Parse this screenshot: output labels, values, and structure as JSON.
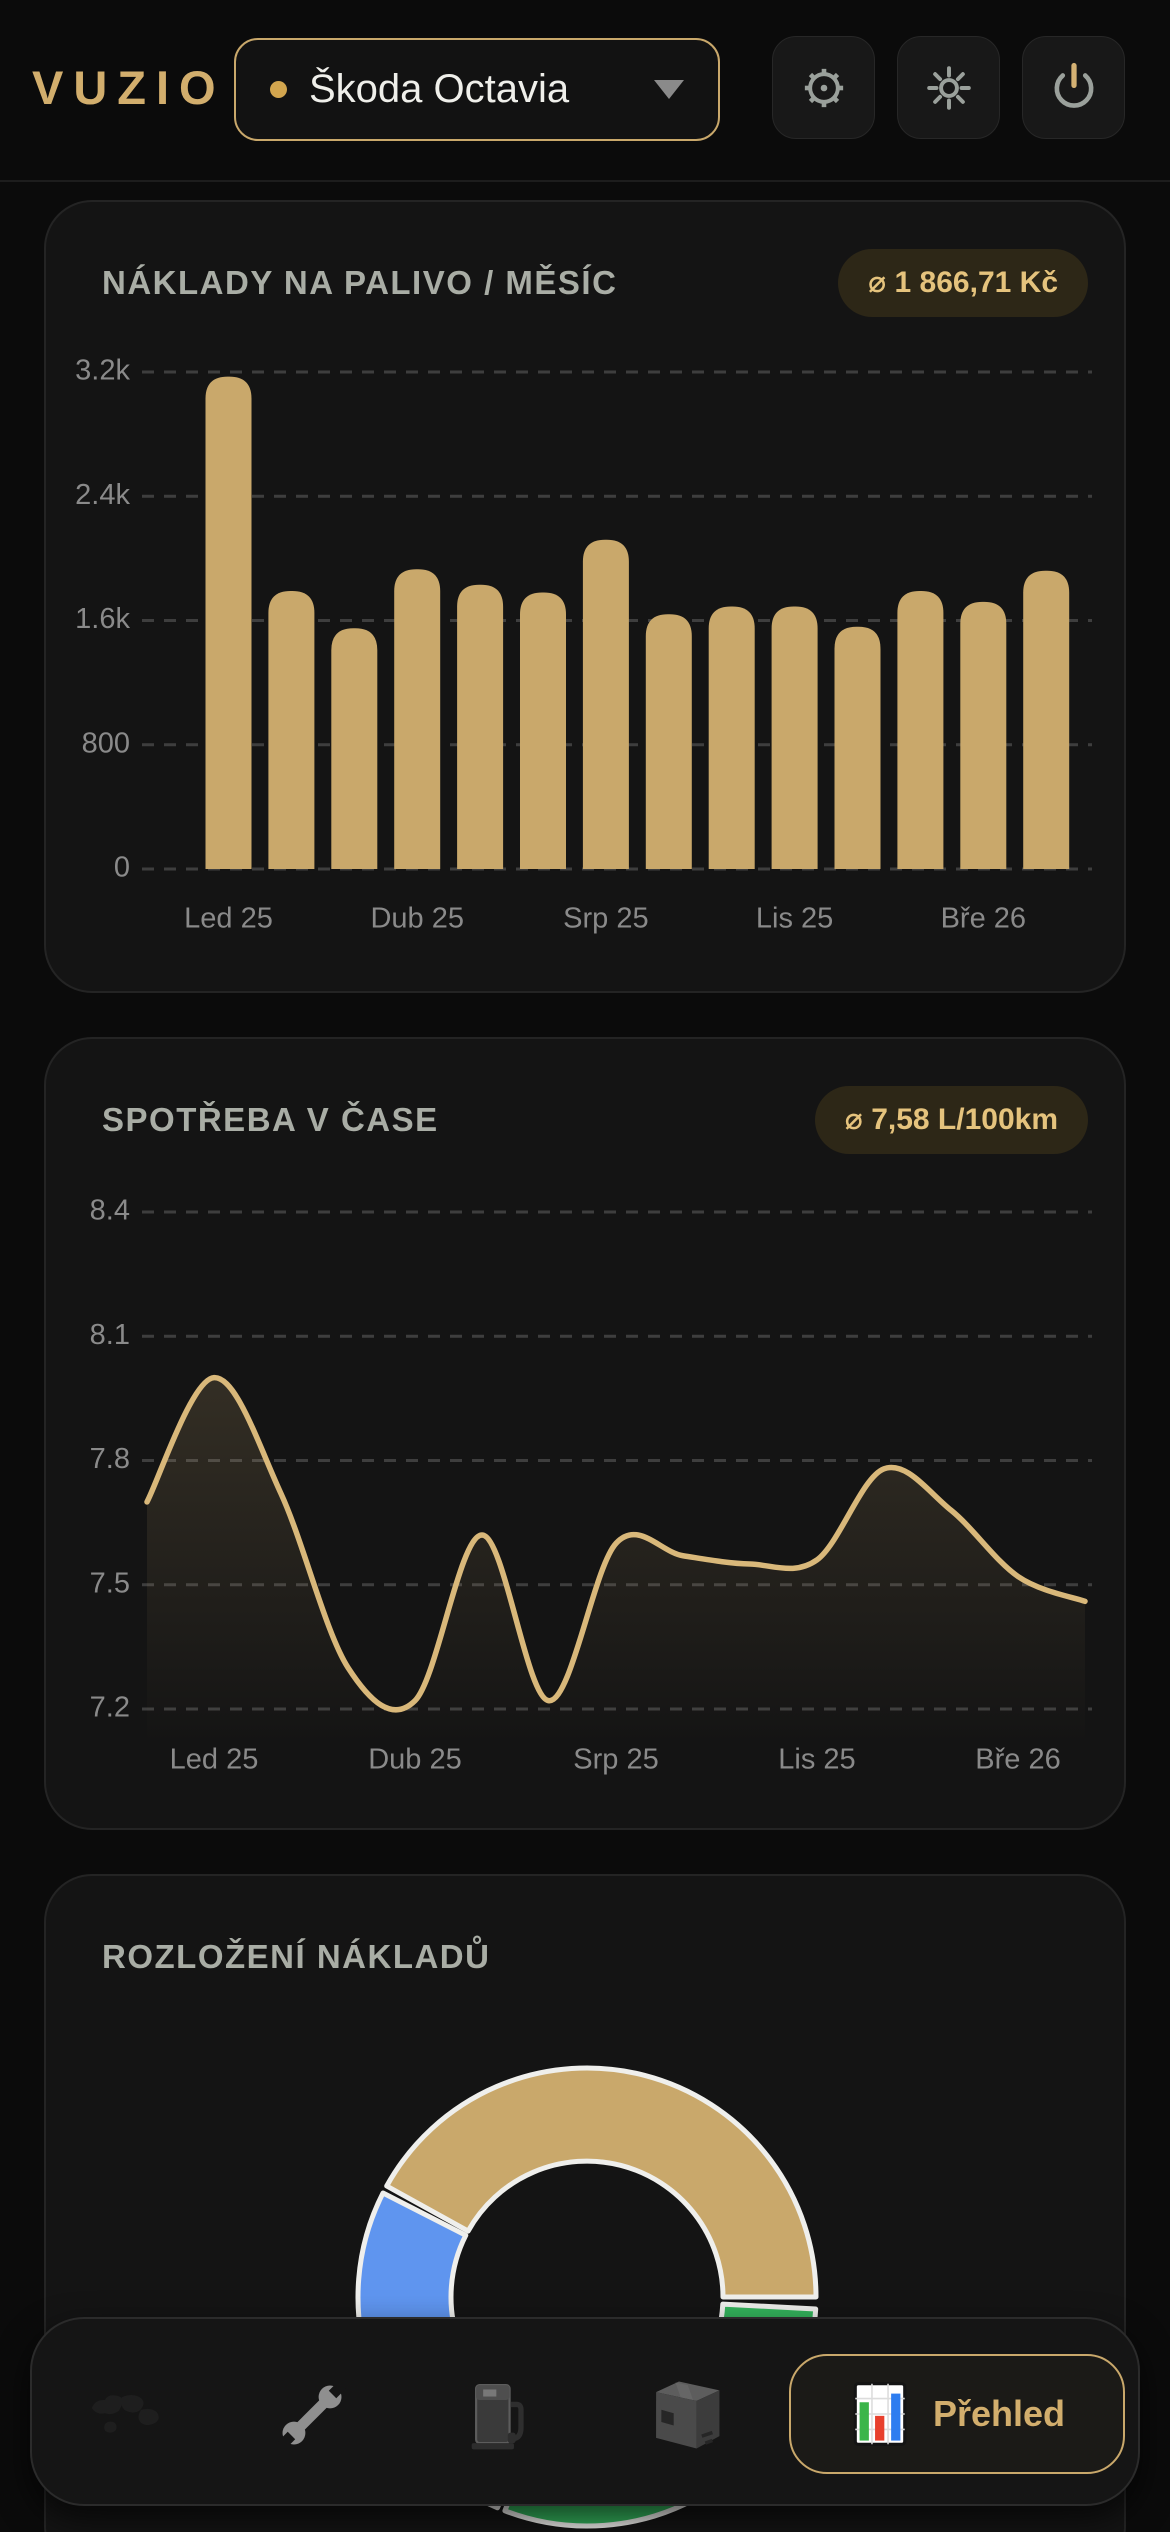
{
  "app": {
    "logo_text": "VUZIO"
  },
  "header": {
    "vehicle_selector": {
      "value": "Škoda Octavia"
    },
    "actions": [
      {
        "icon": "gear"
      },
      {
        "icon": "brightness"
      },
      {
        "icon": "power"
      }
    ]
  },
  "colors": {
    "accent_gold": "#c9a86b",
    "line_gold": "#d9b87a",
    "logo_gold": "#d2ae6d",
    "badge_text": "#e5c37d",
    "badge_bg": "#2d2717",
    "title_gray": "#a9ada5",
    "axis_gray": "#8a8a8a",
    "grid_gray": "#3e3e3e",
    "donut_green": "#34b35c",
    "donut_blue": "#5f95ef",
    "segment_stroke": "#efefec"
  },
  "cards": {
    "fuel_costs": {
      "title": "NÁKLADY NA PALIVO / MĚSÍC",
      "badge": "⌀ 1 866,71 Kč"
    },
    "consumption": {
      "title": "SPOTŘEBA V ČASE",
      "badge": "⌀ 7,58 L/100km"
    },
    "breakdown": {
      "title": "ROZLOŽENÍ NÁKLADŮ"
    }
  },
  "chart_data": [
    {
      "id": "fuel_costs_bar",
      "type": "bar",
      "title": "NÁKLADY NA PALIVO / MĚSÍC",
      "badge_average": "⌀ 1 866,71 Kč",
      "values": [
        3170,
        1790,
        1550,
        1930,
        1830,
        1780,
        2120,
        1640,
        1690,
        1690,
        1560,
        1790,
        1720,
        1920
      ],
      "x_tick_labels": [
        "Led 25",
        "Dub 25",
        "Srp 25",
        "Lis 25",
        "Bře 26"
      ],
      "x_tick_indices": [
        0,
        3,
        6,
        9,
        12
      ],
      "y_ticks": [
        {
          "label": "3.2k",
          "value": 3200
        },
        {
          "label": "2.4k",
          "value": 2400
        },
        {
          "label": "1.6k",
          "value": 1600
        },
        {
          "label": "800",
          "value": 800
        },
        {
          "label": "0",
          "value": 0
        }
      ],
      "ylim": [
        0,
        3200
      ],
      "bar_color": "#c9a86b",
      "grid": "dashed horizontal"
    },
    {
      "id": "consumption_line",
      "type": "line",
      "title": "SPOTŘEBA V ČASE",
      "badge_average": "⌀ 7,58 L/100km",
      "values": [
        7.7,
        8.0,
        7.72,
        7.3,
        7.22,
        7.62,
        7.22,
        7.6,
        7.57,
        7.55,
        7.56,
        7.78,
        7.68,
        7.52,
        7.46
      ],
      "x_tick_labels": [
        "Led 25",
        "Dub 25",
        "Srp 25",
        "Lis 25",
        "Bře 26"
      ],
      "x_tick_indices": [
        1,
        4,
        7,
        10,
        13
      ],
      "y_ticks": [
        {
          "label": "8.4",
          "value": 8.4
        },
        {
          "label": "8.1",
          "value": 8.1
        },
        {
          "label": "7.8",
          "value": 7.8
        },
        {
          "label": "7.5",
          "value": 7.5
        },
        {
          "label": "7.2",
          "value": 7.2
        }
      ],
      "ylim": [
        7.2,
        8.4
      ],
      "line_color": "#d9b87a",
      "grid": "dashed horizontal"
    },
    {
      "id": "cost_breakdown_donut",
      "type": "pie",
      "title": "ROZLOŽENÍ NÁKLADŮ",
      "legend": "none visible (chart cut off by bottom navigation)",
      "segments": [
        {
          "color": "#c9a86b",
          "start_deg": -61,
          "end_deg": 90,
          "approx_percent": 42
        },
        {
          "color": "#34b35c",
          "start_deg": 93,
          "end_deg": 201,
          "approx_percent": 30
        },
        {
          "color": "#5f95ef",
          "start_deg": 203,
          "end_deg": 297,
          "approx_percent": 26
        }
      ]
    }
  ],
  "nav": {
    "items": [
      {
        "icon": "world-map",
        "active": false
      },
      {
        "icon": "wrench",
        "active": false
      },
      {
        "icon": "fuel-pump",
        "active": false
      },
      {
        "icon": "package",
        "active": false
      },
      {
        "icon": "bar-chart",
        "label": "Přehled",
        "active": true
      }
    ]
  }
}
